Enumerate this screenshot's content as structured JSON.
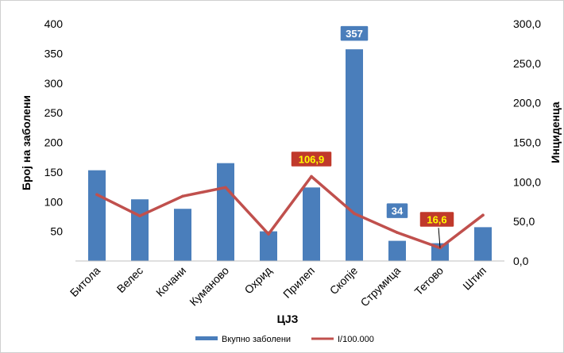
{
  "chart_data": {
    "type": "bar",
    "categories": [
      "Битола",
      "Велес",
      "Кочани",
      "Куманово",
      "Охрид",
      "Прилеп",
      "Скопје",
      "Струмица",
      "Тетово",
      "Штип"
    ],
    "series": [
      {
        "name": "Вкупно заболени",
        "type": "bar",
        "axis": "left",
        "color": "#4a7ebb",
        "values": [
          153,
          104,
          88,
          165,
          50,
          124,
          357,
          34,
          30,
          57
        ]
      },
      {
        "name": "I/100.000",
        "type": "line",
        "axis": "right",
        "color": "#c0504d",
        "values": [
          84,
          57,
          82,
          93,
          34,
          106.9,
          60,
          36,
          16.6,
          58
        ]
      }
    ],
    "xlabel": "ЦЈЗ",
    "ylabel": "Број на заболени",
    "y2label": "Инциденца",
    "ylim": [
      0,
      400
    ],
    "y2lim": [
      0,
      300
    ],
    "yticks": [
      "50",
      "100",
      "150",
      "200",
      "250",
      "300",
      "350",
      "400"
    ],
    "y2ticks": [
      "0,0",
      "50,0",
      "100,0",
      "150,0",
      "200,0",
      "250,0",
      "300,0"
    ],
    "data_labels": [
      {
        "category": "Скопје",
        "series": "Вкупно заболени",
        "text": "357",
        "color": "#4a7ebb"
      },
      {
        "category": "Струмица",
        "series": "Вкупно заболени",
        "text": "34",
        "color": "#4a7ebb"
      },
      {
        "category": "Прилеп",
        "series": "I/100.000",
        "text": "106,9",
        "color": "#c0392b"
      },
      {
        "category": "Тетово",
        "series": "I/100.000",
        "text": "16,6",
        "color": "#c0392b"
      }
    ],
    "label_text_colors": {
      "blue": "#ffffff",
      "red": "#ffff00"
    },
    "legend_position": "bottom",
    "grid": false
  }
}
